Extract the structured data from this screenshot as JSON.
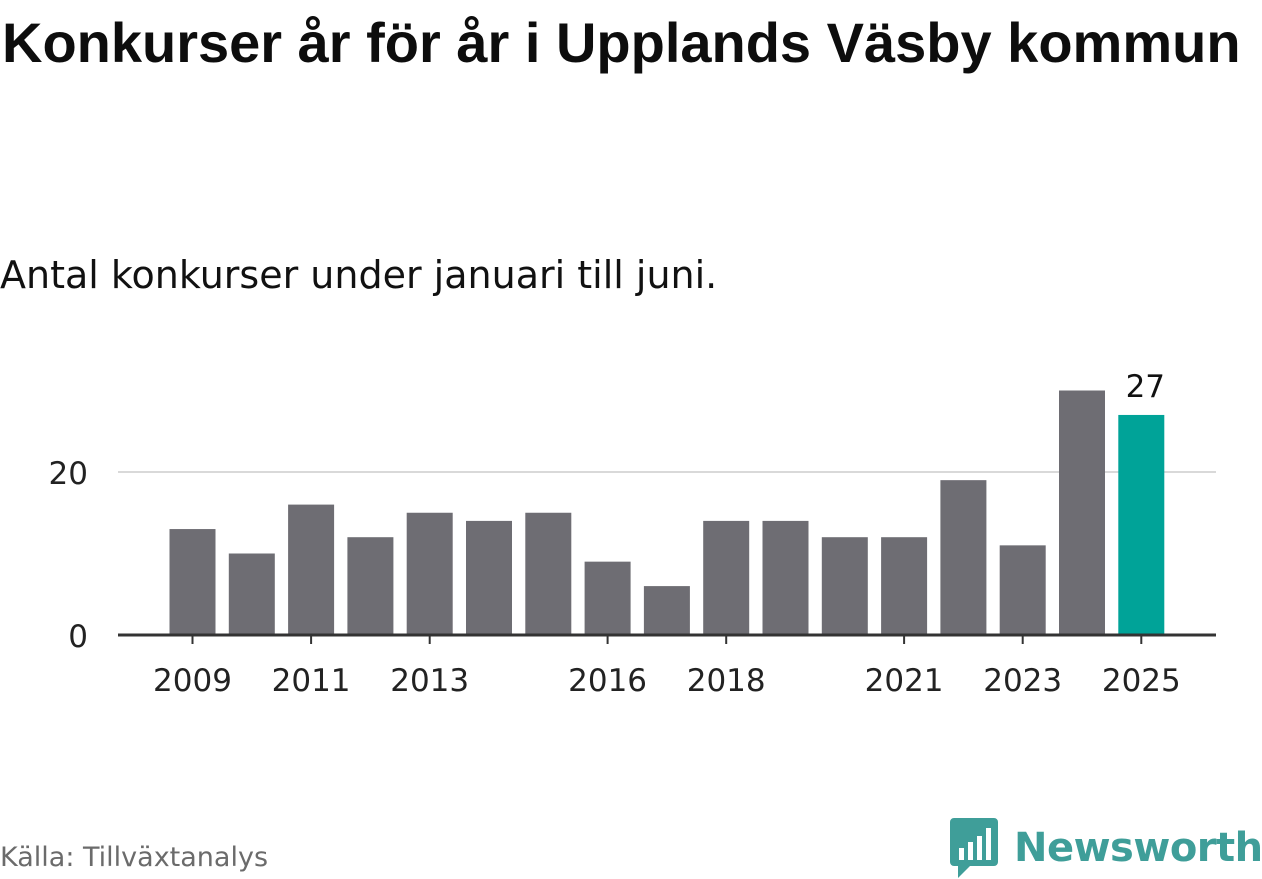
{
  "title": "Konkurser år för år i Upplands Väsby kommun",
  "subtitle": "Antal konkurser under januari till juni.",
  "source": "Källa: Tillväxtanalys",
  "brand": "Newsworthy",
  "colors": {
    "bar": "#6e6d73",
    "highlight": "#00a398",
    "grid": "#d9d9d9",
    "axis": "#333333",
    "brand": "#3f9e99"
  },
  "chart_data": {
    "type": "bar",
    "categories": [
      "2009",
      "2010",
      "2011",
      "2012",
      "2013",
      "2014",
      "2015",
      "2016",
      "2017",
      "2018",
      "2019",
      "2020",
      "2021",
      "2022",
      "2023",
      "2024",
      "2025"
    ],
    "values": [
      13,
      10,
      16,
      12,
      15,
      14,
      15,
      9,
      6,
      14,
      14,
      12,
      12,
      19,
      11,
      30,
      27
    ],
    "x_tick_labels": [
      "2009",
      "2011",
      "2013",
      "2016",
      "2018",
      "2021",
      "2023",
      "2025"
    ],
    "y_ticks": [
      0,
      20
    ],
    "ylim": [
      0,
      30
    ],
    "highlight_category": "2025",
    "data_labels": [
      {
        "category": "2025",
        "text": "27"
      }
    ],
    "grid": true,
    "xlabel": "",
    "ylabel": ""
  }
}
